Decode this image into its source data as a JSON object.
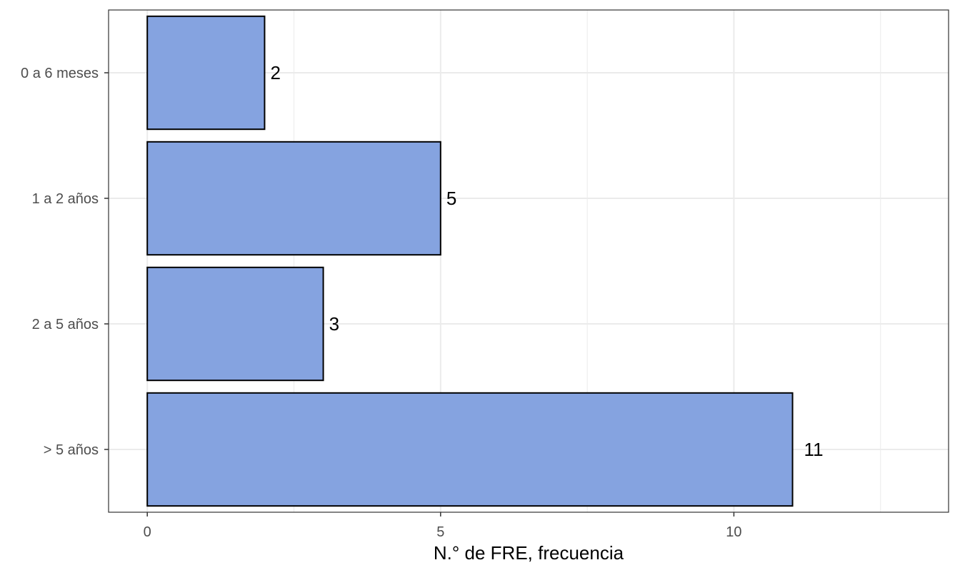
{
  "chart_data": {
    "type": "bar",
    "orientation": "horizontal",
    "categories": [
      "0 a 6 meses",
      "1 a 2 años",
      "2 a 5 años",
      "> 5 años"
    ],
    "values": [
      2,
      5,
      3,
      11
    ],
    "data_labels": [
      "2",
      "5",
      "3",
      "11"
    ],
    "title": "",
    "xlabel": "N.° de FRE, frecuencia",
    "ylabel": "",
    "xlim": [
      -0.66,
      13.66
    ],
    "x_ticks": [
      0,
      5,
      10
    ],
    "x_tick_labels": [
      "0",
      "5",
      "10"
    ],
    "grid": true,
    "legend": "none",
    "colors": {
      "bar_fill": "#85a3e0",
      "bar_stroke": "#000000",
      "grid": "#ebebeb",
      "panel_border": "#333333",
      "tick_text": "#4d4d4d"
    }
  }
}
